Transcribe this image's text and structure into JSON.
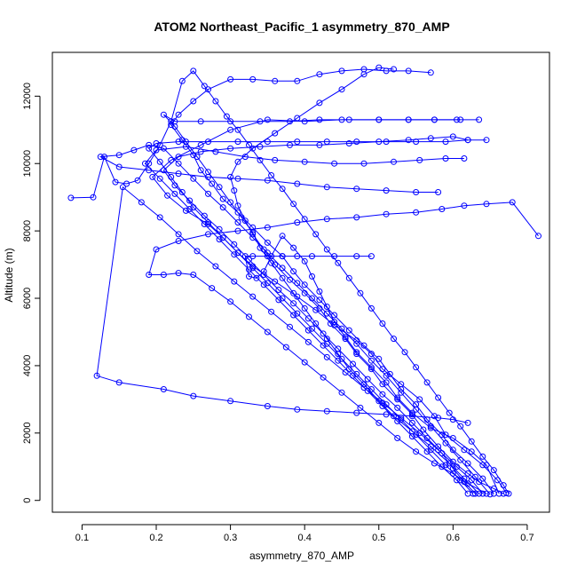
{
  "chart_data": {
    "type": "line",
    "title": "ATOM2 Northeast_Pacific_1 asymmetry_870_AMP",
    "xlabel": "asymmetry_870_AMP",
    "ylabel": "Altitude (m)",
    "xlim": [
      0.06,
      0.73
    ],
    "ylim": [
      -350,
      13300
    ],
    "xticks": [
      0.1,
      0.2,
      0.3,
      0.4,
      0.5,
      0.6,
      0.7
    ],
    "yticks": [
      0,
      2000,
      4000,
      6000,
      8000,
      10000,
      12000
    ],
    "xtick_labels": [
      "0.1",
      "0.2",
      "0.3",
      "0.4",
      "0.5",
      "0.6",
      "0.7"
    ],
    "ytick_labels": [
      "0",
      "2000",
      "4000",
      "6000",
      "8000",
      "10000",
      "12000"
    ],
    "grid": false,
    "legend": "none",
    "marker": "open-circle",
    "color": "#0000ff",
    "series": [
      {
        "x": [
          0.675,
          0.668,
          0.655,
          0.64,
          0.625,
          0.61,
          0.595,
          0.58,
          0.565,
          0.55,
          0.535,
          0.52,
          0.505,
          0.49,
          0.475,
          0.46,
          0.445,
          0.43,
          0.415,
          0.4,
          0.385,
          0.37,
          0.355,
          0.34,
          0.325,
          0.31,
          0.295,
          0.28,
          0.265,
          0.25,
          0.235,
          0.22,
          0.205,
          0.19,
          0.175,
          0.16,
          0.145,
          0.13,
          0.115,
          0.085
        ],
        "y": [
          200,
          450,
          900,
          1300,
          1750,
          2200,
          2600,
          3050,
          3500,
          3950,
          4400,
          4800,
          5250,
          5700,
          6150,
          6600,
          7050,
          7450,
          7900,
          8350,
          8800,
          9250,
          9650,
          10100,
          10550,
          11000,
          11400,
          11850,
          12300,
          12750,
          12450,
          11250,
          10550,
          10000,
          9500,
          9400,
          9450,
          10200,
          9000,
          8980
        ]
      },
      {
        "x": [
          0.672,
          0.66,
          0.64,
          0.615,
          0.59,
          0.575,
          0.555,
          0.53,
          0.505,
          0.49,
          0.47,
          0.44,
          0.415,
          0.39,
          0.36,
          0.33,
          0.31,
          0.29,
          0.27,
          0.24,
          0.215,
          0.195,
          0.22,
          0.26,
          0.3,
          0.35,
          0.4,
          0.45,
          0.5,
          0.54,
          0.575,
          0.605,
          0.635
        ],
        "y": [
          220,
          600,
          1050,
          1500,
          1950,
          2500,
          3000,
          3450,
          3900,
          4350,
          4750,
          5200,
          5650,
          6050,
          6500,
          6950,
          7350,
          7800,
          8200,
          8600,
          9050,
          9600,
          10100,
          10550,
          11000,
          11300,
          11250,
          11300,
          11300,
          11300,
          11300,
          11300,
          11300
        ]
      },
      {
        "x": [
          0.668,
          0.655,
          0.635,
          0.62,
          0.6,
          0.58,
          0.56,
          0.545,
          0.525,
          0.505,
          0.49,
          0.47,
          0.455,
          0.435,
          0.42,
          0.4,
          0.38,
          0.36,
          0.345,
          0.33,
          0.32,
          0.31,
          0.305,
          0.3,
          0.31,
          0.33,
          0.36,
          0.39,
          0.42,
          0.45,
          0.48,
          0.5,
          0.52
        ],
        "y": [
          200,
          350,
          550,
          800,
          1150,
          1600,
          2100,
          2550,
          3000,
          3450,
          3900,
          4350,
          4800,
          5250,
          5700,
          6150,
          6550,
          7000,
          7450,
          7900,
          8300,
          8750,
          9200,
          9600,
          10050,
          10450,
          10900,
          11350,
          11800,
          12200,
          12650,
          12850,
          12800
        ]
      },
      {
        "x": [
          0.662,
          0.645,
          0.625,
          0.6,
          0.57,
          0.545,
          0.525,
          0.51,
          0.49,
          0.47,
          0.455,
          0.44,
          0.43,
          0.42,
          0.41,
          0.4,
          0.385,
          0.37,
          0.355,
          0.345,
          0.335,
          0.325,
          0.32,
          0.33,
          0.35,
          0.37,
          0.39,
          0.41,
          0.44,
          0.47,
          0.49
        ],
        "y": [
          200,
          1050,
          1450,
          1850,
          2150,
          2600,
          3050,
          3500,
          3950,
          4400,
          4850,
          5300,
          5750,
          6200,
          6650,
          7100,
          7500,
          7850,
          7250,
          6800,
          6600,
          6650,
          7250,
          7250,
          7250,
          7250,
          7250,
          7250,
          7250,
          7250,
          7250
        ]
      },
      {
        "x": [
          0.655,
          0.64,
          0.62,
          0.6,
          0.585,
          0.565,
          0.55,
          0.53,
          0.515,
          0.5,
          0.48,
          0.46,
          0.44,
          0.42,
          0.4,
          0.385,
          0.37,
          0.35,
          0.33,
          0.31,
          0.29,
          0.275,
          0.26,
          0.25,
          0.235,
          0.22,
          0.23,
          0.25,
          0.27,
          0.3,
          0.33,
          0.36,
          0.39,
          0.42,
          0.45,
          0.48,
          0.51,
          0.54,
          0.57
        ],
        "y": [
          200,
          650,
          1100,
          1500,
          1950,
          2400,
          2850,
          3300,
          3750,
          4200,
          4600,
          5050,
          5500,
          5950,
          6400,
          6800,
          7250,
          7650,
          8100,
          8550,
          8950,
          9400,
          9800,
          10250,
          10700,
          11150,
          11450,
          11850,
          12200,
          12500,
          12500,
          12450,
          12450,
          12650,
          12750,
          12800,
          12750,
          12750,
          12700
        ]
      },
      {
        "x": [
          0.65,
          0.63,
          0.61,
          0.59,
          0.57,
          0.55,
          0.53,
          0.51,
          0.49,
          0.47,
          0.45,
          0.43,
          0.41,
          0.39,
          0.37,
          0.35,
          0.33,
          0.31,
          0.29,
          0.27,
          0.25,
          0.23,
          0.21,
          0.19,
          0.17,
          0.15,
          0.125,
          0.15,
          0.19,
          0.23,
          0.27,
          0.31,
          0.35,
          0.39,
          0.43,
          0.47,
          0.51,
          0.55,
          0.58
        ],
        "y": [
          180,
          700,
          1200,
          1700,
          2200,
          2700,
          3200,
          3700,
          4150,
          4650,
          5100,
          5550,
          6000,
          6450,
          6900,
          7350,
          7800,
          8250,
          8700,
          9100,
          9550,
          10000,
          10450,
          10550,
          10400,
          10250,
          10200,
          9900,
          9800,
          9700,
          9600,
          9550,
          9500,
          9400,
          9300,
          9250,
          9200,
          9150,
          9150
        ]
      },
      {
        "x": [
          0.645,
          0.62,
          0.6,
          0.575,
          0.55,
          0.525,
          0.5,
          0.475,
          0.45,
          0.425,
          0.4,
          0.375,
          0.35,
          0.325,
          0.3,
          0.275,
          0.25,
          0.23,
          0.21,
          0.19,
          0.2,
          0.23,
          0.27,
          0.31,
          0.35,
          0.39,
          0.43,
          0.47,
          0.51,
          0.55,
          0.585,
          0.615,
          0.645,
          0.68,
          0.715
        ],
        "y": [
          200,
          500,
          800,
          1100,
          1450,
          1850,
          2300,
          2750,
          3200,
          3650,
          4100,
          4550,
          5000,
          5450,
          5900,
          6300,
          6700,
          6750,
          6700,
          6700,
          7450,
          7700,
          7900,
          8000,
          8100,
          8250,
          8350,
          8400,
          8500,
          8550,
          8650,
          8750,
          8800,
          8850,
          7850
        ]
      },
      {
        "x": [
          0.64,
          0.625,
          0.605,
          0.58,
          0.555,
          0.53,
          0.505,
          0.48,
          0.455,
          0.43,
          0.405,
          0.38,
          0.355,
          0.33,
          0.305,
          0.28,
          0.255,
          0.23,
          0.205,
          0.18,
          0.155,
          0.12,
          0.15,
          0.21,
          0.25,
          0.3,
          0.35,
          0.39,
          0.43,
          0.47,
          0.51,
          0.545,
          0.58,
          0.6,
          0.62
        ],
        "y": [
          200,
          600,
          1000,
          1500,
          2000,
          2450,
          2900,
          3350,
          3800,
          4250,
          4700,
          5150,
          5600,
          6050,
          6500,
          6950,
          7400,
          7900,
          8400,
          8850,
          9300,
          3700,
          3500,
          3300,
          3100,
          2950,
          2800,
          2700,
          2650,
          2600,
          2550,
          2500,
          2450,
          2400,
          2300
        ]
      },
      {
        "x": [
          0.635,
          0.615,
          0.595,
          0.57,
          0.545,
          0.52,
          0.5,
          0.48,
          0.46,
          0.445,
          0.43,
          0.415,
          0.4,
          0.385,
          0.37,
          0.355,
          0.34,
          0.33,
          0.315,
          0.3,
          0.285,
          0.27,
          0.255,
          0.24,
          0.225,
          0.21,
          0.225,
          0.26,
          0.3,
          0.34,
          0.38,
          0.42,
          0.46,
          0.5,
          0.54,
          0.575,
          0.61
        ],
        "y": [
          200,
          650,
          1100,
          1600,
          2050,
          2500,
          2950,
          3450,
          3900,
          4350,
          4800,
          5250,
          5700,
          6150,
          6600,
          7050,
          7500,
          7950,
          8400,
          8850,
          9300,
          9750,
          10200,
          10650,
          11100,
          11450,
          11250,
          11250,
          11250,
          11250,
          11250,
          11300,
          11300,
          11300,
          11300,
          11300,
          11300
        ]
      },
      {
        "x": [
          0.63,
          0.615,
          0.6,
          0.585,
          0.565,
          0.545,
          0.525,
          0.505,
          0.485,
          0.465,
          0.445,
          0.425,
          0.405,
          0.385,
          0.365,
          0.345,
          0.325,
          0.305,
          0.285,
          0.265,
          0.245,
          0.225,
          0.21,
          0.23,
          0.26,
          0.3,
          0.34,
          0.38,
          0.42,
          0.46,
          0.5,
          0.54,
          0.57,
          0.6,
          0.62
        ],
        "y": [
          200,
          550,
          950,
          1400,
          1850,
          2300,
          2750,
          3150,
          3600,
          4050,
          4500,
          4950,
          5400,
          5850,
          6250,
          6700,
          7150,
          7600,
          8050,
          8450,
          8900,
          9350,
          9800,
          10200,
          10350,
          10450,
          10500,
          10550,
          10550,
          10600,
          10650,
          10700,
          10750,
          10800,
          10700
        ]
      },
      {
        "x": [
          0.627,
          0.61,
          0.59,
          0.57,
          0.55,
          0.53,
          0.51,
          0.49,
          0.47,
          0.45,
          0.43,
          0.41,
          0.39,
          0.37,
          0.35,
          0.33,
          0.31,
          0.29,
          0.27,
          0.25,
          0.235,
          0.22,
          0.205,
          0.19,
          0.2,
          0.23,
          0.27,
          0.31,
          0.35,
          0.39,
          0.43,
          0.47,
          0.51,
          0.55,
          0.59,
          0.62,
          0.645
        ],
        "y": [
          200,
          600,
          1050,
          1500,
          1950,
          2400,
          2850,
          3300,
          3750,
          4200,
          4650,
          5100,
          5550,
          6000,
          6450,
          6900,
          7350,
          7800,
          8250,
          8700,
          9150,
          9600,
          10050,
          10450,
          10600,
          10650,
          10650,
          10650,
          10650,
          10650,
          10650,
          10650,
          10650,
          10650,
          10650,
          10700,
          10700
        ]
      },
      {
        "x": [
          0.62,
          0.605,
          0.585,
          0.565,
          0.545,
          0.525,
          0.505,
          0.485,
          0.465,
          0.445,
          0.425,
          0.405,
          0.385,
          0.365,
          0.345,
          0.325,
          0.305,
          0.285,
          0.265,
          0.245,
          0.225,
          0.205,
          0.185,
          0.2,
          0.24,
          0.28,
          0.32,
          0.36,
          0.4,
          0.44,
          0.48,
          0.52,
          0.555,
          0.59,
          0.615
        ],
        "y": [
          200,
          600,
          1000,
          1450,
          1900,
          2350,
          2800,
          3250,
          3700,
          4150,
          4600,
          5050,
          5500,
          5950,
          6400,
          6850,
          7300,
          7750,
          8200,
          8650,
          9100,
          9550,
          10000,
          10400,
          10500,
          10350,
          10200,
          10100,
          10050,
          10000,
          10000,
          10050,
          10100,
          10150,
          10150
        ]
      }
    ]
  }
}
